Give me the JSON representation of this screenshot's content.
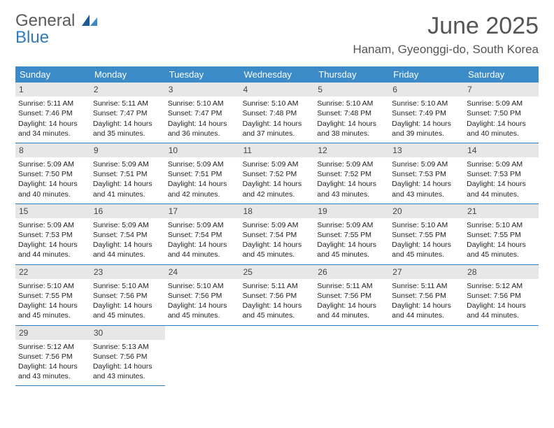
{
  "logo": {
    "word1": "General",
    "word2": "Blue"
  },
  "title": "June 2025",
  "location": "Hanam, Gyeonggi-do, South Korea",
  "colors": {
    "header_bg": "#3b8bc9",
    "header_text": "#ffffff",
    "divider": "#2f7bbf",
    "daynum_bg": "#e7e7e7",
    "body_text": "#222222",
    "logo_gray": "#5a5a5a",
    "logo_blue": "#2f7bbf"
  },
  "weekdays": [
    "Sunday",
    "Monday",
    "Tuesday",
    "Wednesday",
    "Thursday",
    "Friday",
    "Saturday"
  ],
  "days": [
    {
      "n": 1,
      "sr": "5:11 AM",
      "ss": "7:46 PM",
      "dl": "14 hours and 34 minutes."
    },
    {
      "n": 2,
      "sr": "5:11 AM",
      "ss": "7:47 PM",
      "dl": "14 hours and 35 minutes."
    },
    {
      "n": 3,
      "sr": "5:10 AM",
      "ss": "7:47 PM",
      "dl": "14 hours and 36 minutes."
    },
    {
      "n": 4,
      "sr": "5:10 AM",
      "ss": "7:48 PM",
      "dl": "14 hours and 37 minutes."
    },
    {
      "n": 5,
      "sr": "5:10 AM",
      "ss": "7:48 PM",
      "dl": "14 hours and 38 minutes."
    },
    {
      "n": 6,
      "sr": "5:10 AM",
      "ss": "7:49 PM",
      "dl": "14 hours and 39 minutes."
    },
    {
      "n": 7,
      "sr": "5:09 AM",
      "ss": "7:50 PM",
      "dl": "14 hours and 40 minutes."
    },
    {
      "n": 8,
      "sr": "5:09 AM",
      "ss": "7:50 PM",
      "dl": "14 hours and 40 minutes."
    },
    {
      "n": 9,
      "sr": "5:09 AM",
      "ss": "7:51 PM",
      "dl": "14 hours and 41 minutes."
    },
    {
      "n": 10,
      "sr": "5:09 AM",
      "ss": "7:51 PM",
      "dl": "14 hours and 42 minutes."
    },
    {
      "n": 11,
      "sr": "5:09 AM",
      "ss": "7:52 PM",
      "dl": "14 hours and 42 minutes."
    },
    {
      "n": 12,
      "sr": "5:09 AM",
      "ss": "7:52 PM",
      "dl": "14 hours and 43 minutes."
    },
    {
      "n": 13,
      "sr": "5:09 AM",
      "ss": "7:53 PM",
      "dl": "14 hours and 43 minutes."
    },
    {
      "n": 14,
      "sr": "5:09 AM",
      "ss": "7:53 PM",
      "dl": "14 hours and 44 minutes."
    },
    {
      "n": 15,
      "sr": "5:09 AM",
      "ss": "7:53 PM",
      "dl": "14 hours and 44 minutes."
    },
    {
      "n": 16,
      "sr": "5:09 AM",
      "ss": "7:54 PM",
      "dl": "14 hours and 44 minutes."
    },
    {
      "n": 17,
      "sr": "5:09 AM",
      "ss": "7:54 PM",
      "dl": "14 hours and 44 minutes."
    },
    {
      "n": 18,
      "sr": "5:09 AM",
      "ss": "7:54 PM",
      "dl": "14 hours and 45 minutes."
    },
    {
      "n": 19,
      "sr": "5:09 AM",
      "ss": "7:55 PM",
      "dl": "14 hours and 45 minutes."
    },
    {
      "n": 20,
      "sr": "5:10 AM",
      "ss": "7:55 PM",
      "dl": "14 hours and 45 minutes."
    },
    {
      "n": 21,
      "sr": "5:10 AM",
      "ss": "7:55 PM",
      "dl": "14 hours and 45 minutes."
    },
    {
      "n": 22,
      "sr": "5:10 AM",
      "ss": "7:55 PM",
      "dl": "14 hours and 45 minutes."
    },
    {
      "n": 23,
      "sr": "5:10 AM",
      "ss": "7:56 PM",
      "dl": "14 hours and 45 minutes."
    },
    {
      "n": 24,
      "sr": "5:10 AM",
      "ss": "7:56 PM",
      "dl": "14 hours and 45 minutes."
    },
    {
      "n": 25,
      "sr": "5:11 AM",
      "ss": "7:56 PM",
      "dl": "14 hours and 45 minutes."
    },
    {
      "n": 26,
      "sr": "5:11 AM",
      "ss": "7:56 PM",
      "dl": "14 hours and 44 minutes."
    },
    {
      "n": 27,
      "sr": "5:11 AM",
      "ss": "7:56 PM",
      "dl": "14 hours and 44 minutes."
    },
    {
      "n": 28,
      "sr": "5:12 AM",
      "ss": "7:56 PM",
      "dl": "14 hours and 44 minutes."
    },
    {
      "n": 29,
      "sr": "5:12 AM",
      "ss": "7:56 PM",
      "dl": "14 hours and 43 minutes."
    },
    {
      "n": 30,
      "sr": "5:13 AM",
      "ss": "7:56 PM",
      "dl": "14 hours and 43 minutes."
    }
  ],
  "labels": {
    "sunrise": "Sunrise:",
    "sunset": "Sunset:",
    "daylight": "Daylight:"
  }
}
